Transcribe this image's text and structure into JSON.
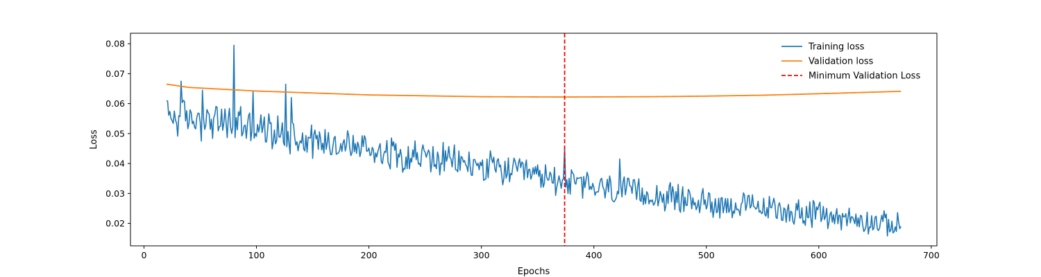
{
  "chart_data": {
    "type": "line",
    "title": "",
    "xlabel": "Epochs",
    "ylabel": "Loss",
    "xlim": [
      -12,
      705
    ],
    "ylim": [
      0.0125,
      0.0835
    ],
    "xticks": [
      0,
      100,
      200,
      300,
      400,
      500,
      600,
      700
    ],
    "yticks": [
      0.02,
      0.03,
      0.04,
      0.05,
      0.06,
      0.07,
      0.08
    ],
    "legend_position": "top-right",
    "legend_frame": false,
    "grid": false,
    "series": [
      {
        "name": "Training loss",
        "color": "#1f77b4",
        "style": "solid",
        "x_range": [
          20,
          673
        ],
        "trend_points": [
          [
            20,
            0.056
          ],
          [
            80,
            0.053
          ],
          [
            150,
            0.048
          ],
          [
            200,
            0.045
          ],
          [
            300,
            0.039
          ],
          [
            375,
            0.034
          ],
          [
            400,
            0.032
          ],
          [
            500,
            0.027
          ],
          [
            600,
            0.023
          ],
          [
            673,
            0.019
          ]
        ],
        "noise_amplitude": 0.0055,
        "spikes": [
          [
            20,
            0.061
          ],
          [
            33,
            0.0675
          ],
          [
            52,
            0.0645
          ],
          [
            80,
            0.0795
          ],
          [
            86,
            0.059
          ],
          [
            97,
            0.064
          ],
          [
            126,
            0.0665
          ],
          [
            131,
            0.062
          ],
          [
            374,
            0.0455
          ],
          [
            423,
            0.0415
          ]
        ],
        "end_value": 0.019
      },
      {
        "name": "Validation loss",
        "color": "#ff7f0e",
        "style": "solid",
        "points": [
          [
            20,
            0.0665
          ],
          [
            40,
            0.0654
          ],
          [
            100,
            0.0642
          ],
          [
            200,
            0.0629
          ],
          [
            300,
            0.0623
          ],
          [
            375,
            0.0622
          ],
          [
            450,
            0.0623
          ],
          [
            500,
            0.0625
          ],
          [
            550,
            0.0628
          ],
          [
            600,
            0.0633
          ],
          [
            673,
            0.0641
          ]
        ]
      }
    ],
    "annotations": [
      {
        "type": "vline",
        "x": 374,
        "name": "Minimum Validation Loss",
        "color": "#ff0000",
        "style": "dashed"
      }
    ]
  }
}
